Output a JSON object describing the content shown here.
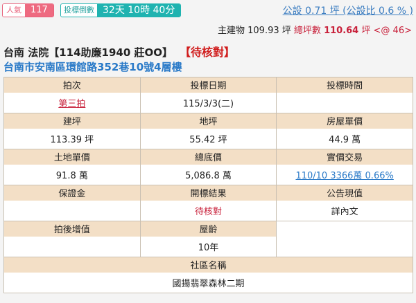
{
  "badges": {
    "popularity_label": "人氣",
    "popularity_value": "117",
    "countdown_label": "投標倒數",
    "countdown_value": "32天 10時 40分"
  },
  "public_area": "公設 0.71 坪 (公設比 0.6 % )",
  "area_summary": {
    "main_building": "主建物 109.93 坪",
    "total_label": "總坪數",
    "total_value": "110.64",
    "unit": "坪",
    "at": "<@ 46>"
  },
  "title": "台南 法院【114助廉1940 莊OO】",
  "status": "【待核對】",
  "address": "台南市安南區環館路352巷10號4層樓",
  "table": {
    "rows": [
      {
        "headers": [
          "拍次",
          "投標日期",
          "投標時間"
        ],
        "values": [
          "第三拍",
          "115/3/3(二)",
          ""
        ]
      },
      {
        "headers": [
          "建坪",
          "地坪",
          "房屋單價"
        ],
        "values": [
          "113.39 坪",
          "55.42 坪",
          "44.9 萬"
        ]
      },
      {
        "headers": [
          "土地單價",
          "總底價",
          "實價交易"
        ],
        "values": [
          "91.8 萬",
          "5,086.8 萬",
          "110/10 3366萬 0.66%"
        ]
      },
      {
        "headers": [
          "保證金",
          "開標結果",
          "公告現值"
        ],
        "values": [
          "",
          "待核對",
          "詳內文"
        ]
      },
      {
        "headers": [
          "拍後增值",
          "屋齡"
        ],
        "values": [
          "",
          "10年"
        ]
      },
      {
        "headers": [
          "社區名稱"
        ],
        "values": [
          "國揚翡翠森林二期"
        ]
      }
    ]
  },
  "colors": {
    "header_bg": "#f3dfc6",
    "accent_red": "#c8203a",
    "link_blue": "#2a7ac8",
    "teal": "#1fb3b0",
    "pink": "#ee6a80"
  }
}
